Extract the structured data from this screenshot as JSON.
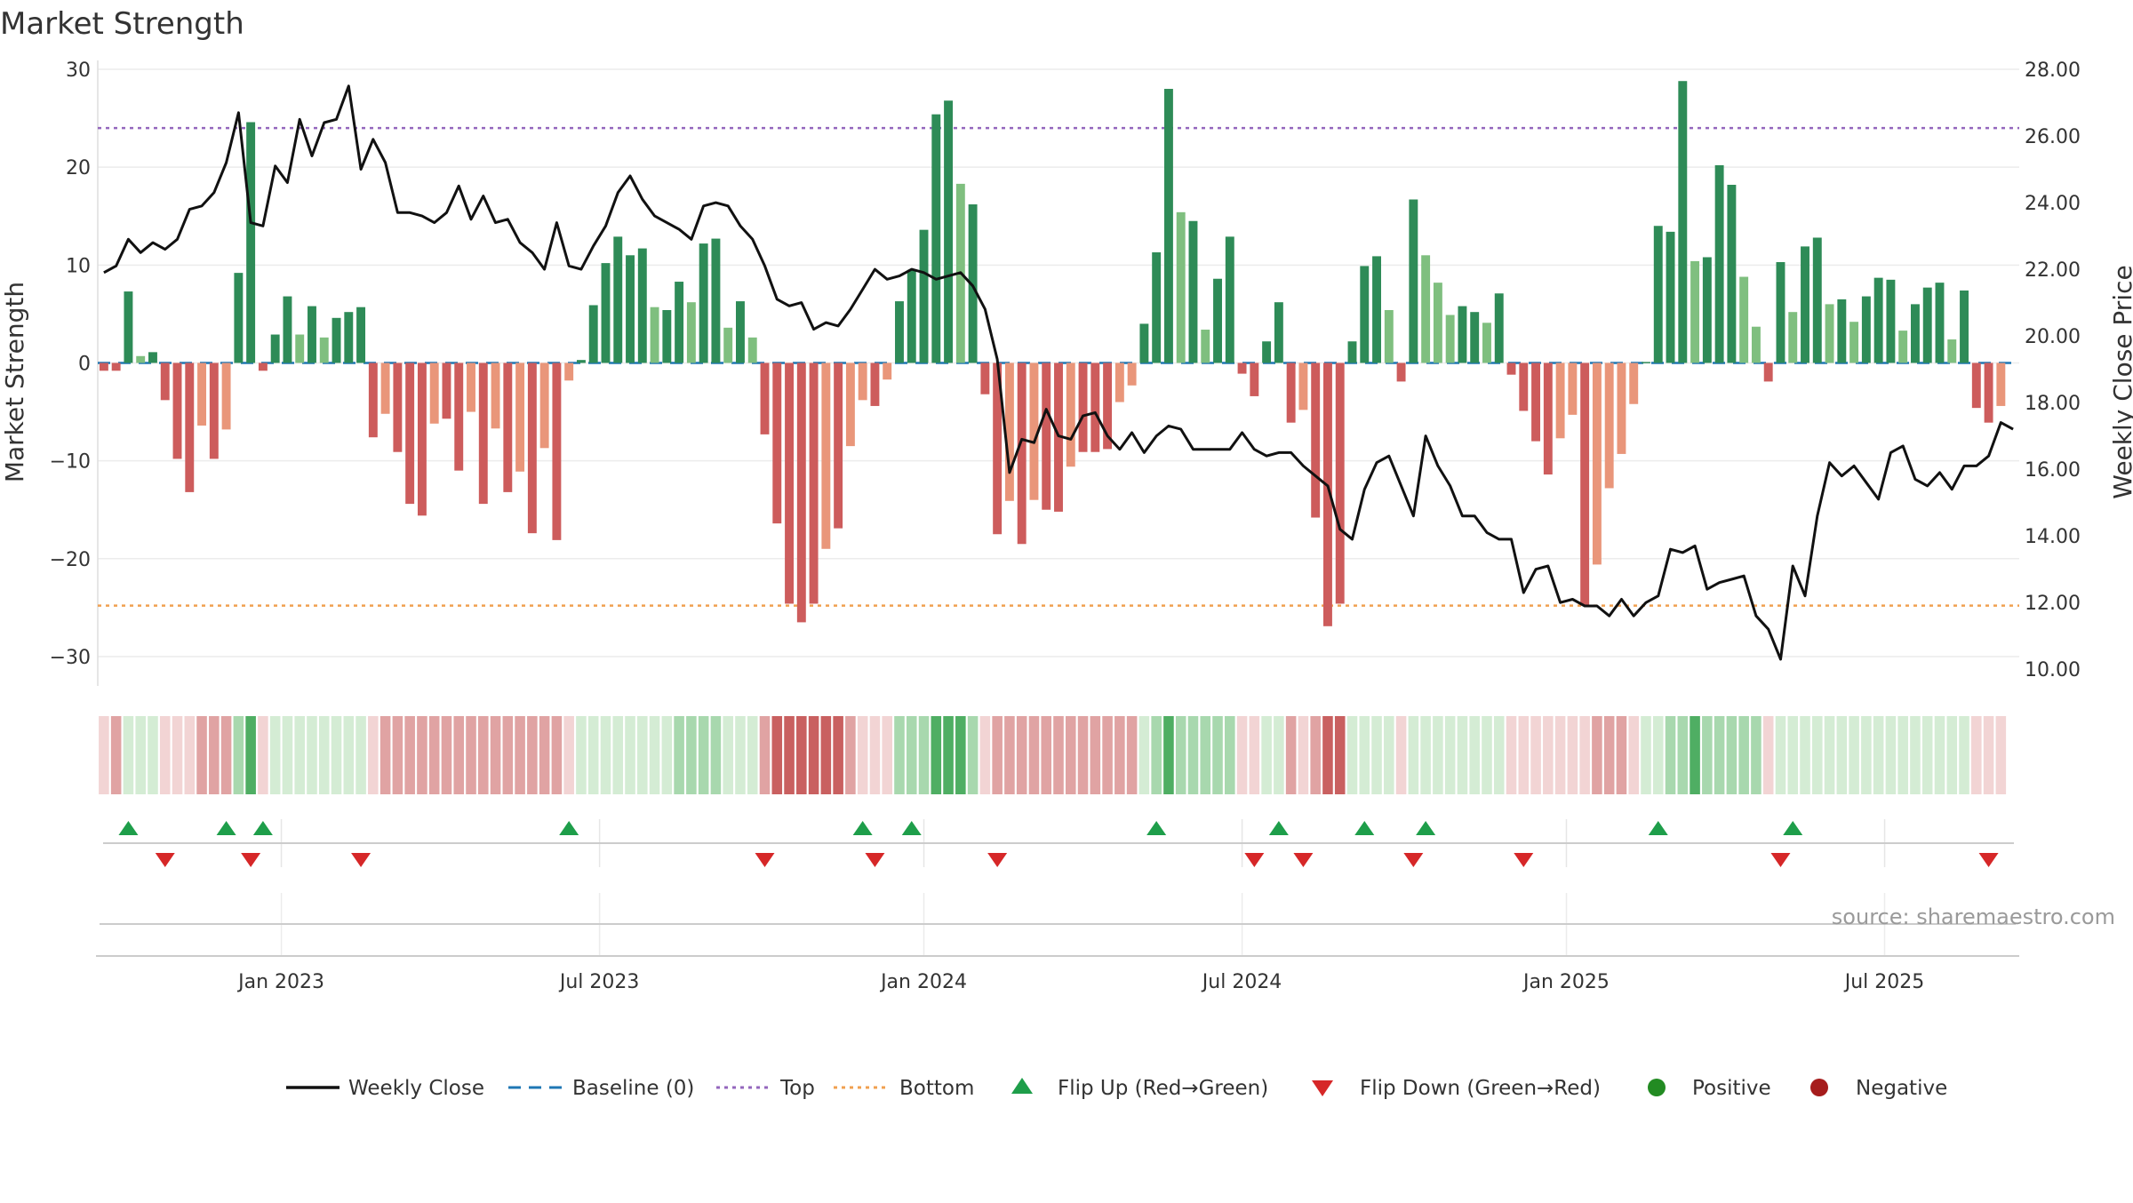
{
  "chart_data": {
    "type": "bar+line",
    "title": "Market Strength",
    "y_left_label": "Market Strength",
    "y_right_label": "Weekly Close Price",
    "y_left_range": [
      -33,
      30
    ],
    "y_left_ticks": [
      "30",
      "20",
      "10",
      "0",
      "−10",
      "−20",
      "−30"
    ],
    "y_left_tick_values": [
      30,
      20,
      10,
      0,
      -10,
      -20,
      -30
    ],
    "y_right_range": [
      9.5,
      28.0
    ],
    "y_right_ticks": [
      "28.00",
      "26.00",
      "24.00",
      "22.00",
      "20.00",
      "18.00",
      "16.00",
      "14.00",
      "12.00",
      "10.00"
    ],
    "y_right_tick_values": [
      28,
      26,
      24,
      22,
      20,
      18,
      16,
      14,
      12,
      10
    ],
    "top_level": 24,
    "bottom_level": -24.8,
    "x_ticks": [
      "Jan 2023",
      "Jul 2023",
      "Jan 2024",
      "Jul 2024",
      "Jan 2025",
      "Jul 2025"
    ],
    "x_tick_weeks": [
      14.5,
      40.5,
      67,
      93,
      119.5,
      145.5
    ],
    "strength": [
      -0.8,
      -0.8,
      7.3,
      0.7,
      1.1,
      -3.8,
      -9.8,
      -13.2,
      -6.4,
      -9.8,
      -6.8,
      9.2,
      24.6,
      -0.8,
      2.9,
      6.8,
      2.9,
      5.8,
      2.6,
      4.6,
      5.2,
      5.7,
      -7.6,
      -5.2,
      -9.1,
      -14.4,
      -15.6,
      -6.2,
      -5.7,
      -11.0,
      -5.0,
      -14.4,
      -6.7,
      -13.2,
      -11.1,
      -17.4,
      -8.7,
      -18.1,
      -1.8,
      0.3,
      5.9,
      10.2,
      12.9,
      11.0,
      11.7,
      5.7,
      5.4,
      8.3,
      6.2,
      12.2,
      12.7,
      3.6,
      6.3,
      2.6,
      -7.3,
      -16.4,
      -24.6,
      -26.5,
      -24.6,
      -19.0,
      -16.9,
      -8.5,
      -3.8,
      -4.4,
      -1.7,
      6.3,
      9.5,
      13.6,
      25.4,
      26.8,
      18.3,
      16.2,
      -3.2,
      -17.5,
      -14.1,
      -18.5,
      -14.0,
      -15.0,
      -15.2,
      -10.6,
      -9.1,
      -9.1,
      -8.8,
      -4.0,
      -2.3,
      4.0,
      11.3,
      28.0,
      15.4,
      14.5,
      3.4,
      8.6,
      12.9,
      -1.1,
      -3.4,
      2.2,
      6.2,
      -6.1,
      -4.8,
      -15.8,
      -26.9,
      -24.6,
      2.2,
      9.9,
      10.9,
      5.4,
      -1.9,
      16.7,
      11.0,
      8.2,
      4.9,
      5.8,
      5.2,
      4.1,
      7.1,
      -1.2,
      -4.9,
      -8.0,
      -11.4,
      -7.7,
      -5.3,
      -24.8,
      -20.6,
      -12.8,
      -9.3,
      -4.2,
      0.1,
      14.0,
      13.4,
      28.8,
      10.4,
      10.8,
      20.2,
      18.2,
      8.8,
      3.7,
      -1.9,
      10.3,
      5.2,
      11.9,
      12.8,
      6.0,
      6.5,
      4.2,
      6.8,
      8.7,
      8.5,
      3.3,
      6.0,
      7.7,
      8.2,
      2.4,
      7.4,
      -4.6,
      -6.1,
      -4.4
    ],
    "weekly_close": [
      21.9,
      22.1,
      22.9,
      22.5,
      22.8,
      22.6,
      22.9,
      23.8,
      23.9,
      24.3,
      25.2,
      26.7,
      23.4,
      23.3,
      25.1,
      24.6,
      26.5,
      25.4,
      26.4,
      26.5,
      27.5,
      25.0,
      25.9,
      25.2,
      23.7,
      23.7,
      23.6,
      23.4,
      23.7,
      24.5,
      23.5,
      24.2,
      23.4,
      23.5,
      22.8,
      22.5,
      22.0,
      23.4,
      22.1,
      22.0,
      22.7,
      23.3,
      24.3,
      24.8,
      24.1,
      23.6,
      23.4,
      23.2,
      22.9,
      23.9,
      24.0,
      23.9,
      23.3,
      22.9,
      22.1,
      21.1,
      20.9,
      21.0,
      20.2,
      20.4,
      20.3,
      20.8,
      21.4,
      22.0,
      21.7,
      21.8,
      22.0,
      21.9,
      21.7,
      21.8,
      21.9,
      21.5,
      20.8,
      19.3,
      15.9,
      16.9,
      16.8,
      17.8,
      17.0,
      16.9,
      17.6,
      17.7,
      17.0,
      16.6,
      17.1,
      16.5,
      17.0,
      17.3,
      17.2,
      16.6,
      16.6,
      16.6,
      16.6,
      17.1,
      16.6,
      16.4,
      16.5,
      16.5,
      16.1,
      15.8,
      15.5,
      14.2,
      13.9,
      15.4,
      16.2,
      16.4,
      15.5,
      14.6,
      17.0,
      16.1,
      15.5,
      14.6,
      14.6,
      14.1,
      13.9,
      13.9,
      12.3,
      13.0,
      13.1,
      12.0,
      12.1,
      11.9,
      11.9,
      11.6,
      12.1,
      11.6,
      12.0,
      12.2,
      13.6,
      13.5,
      13.7,
      12.4,
      12.6,
      12.7,
      12.8,
      11.6,
      11.2,
      10.3,
      13.1,
      12.2,
      14.6,
      16.2,
      15.8,
      16.1,
      15.6,
      15.1,
      16.5,
      16.7,
      15.7,
      15.5,
      15.9,
      15.4,
      16.1,
      16.1,
      16.4,
      17.4,
      17.2
    ],
    "heat_strip_shades": [
      1,
      2,
      1,
      1,
      1,
      1,
      1,
      1,
      2,
      2,
      2,
      2,
      3,
      1,
      1,
      1,
      1,
      1,
      1,
      1,
      1,
      1,
      1,
      2,
      2,
      2,
      2,
      2,
      2,
      2,
      2,
      2,
      2,
      2,
      2,
      2,
      2,
      2,
      1,
      1,
      1,
      1,
      1,
      1,
      1,
      1,
      1,
      2,
      2,
      2,
      2,
      1,
      1,
      1,
      2,
      3,
      3,
      3,
      3,
      3,
      3,
      2,
      1,
      1,
      1,
      2,
      2,
      2,
      3,
      3,
      3,
      2,
      1,
      2,
      2,
      2,
      2,
      2,
      2,
      2,
      2,
      2,
      2,
      2,
      2,
      1,
      2,
      3,
      2,
      2,
      2,
      2,
      2,
      1,
      1,
      1,
      1,
      2,
      1,
      2,
      3,
      3,
      1,
      1,
      1,
      1,
      1,
      1,
      1,
      1,
      1,
      1,
      1,
      1,
      1,
      1,
      1,
      1,
      1,
      1,
      1,
      1,
      2,
      2,
      2,
      1,
      1,
      1,
      2,
      2,
      3,
      2,
      2,
      2,
      2,
      2,
      1,
      1,
      1,
      1,
      1,
      1,
      1,
      1,
      1,
      1,
      1,
      1,
      1,
      1,
      1,
      1,
      1,
      1,
      1,
      1
    ],
    "flip_up_weeks": [
      2,
      10,
      13,
      38,
      62,
      66,
      86,
      96,
      103,
      108,
      127,
      138
    ],
    "flip_down_weeks": [
      5,
      12,
      21,
      54,
      63,
      73,
      94,
      98,
      107,
      116,
      137,
      154
    ],
    "n_weeks": 157,
    "annotation": "source: sharemaestro.com",
    "legend": [
      {
        "label": "Weekly Close",
        "symbol": "line",
        "color": "#111111"
      },
      {
        "label": "Baseline (0)",
        "symbol": "dash",
        "color": "#1f77b4"
      },
      {
        "label": "Top",
        "symbol": "dot",
        "color": "#9467bd"
      },
      {
        "label": "Bottom",
        "symbol": "dot",
        "color": "#f0a050"
      },
      {
        "label": "Flip Up (Red→Green)",
        "symbol": "triangle-up",
        "color": "#1e9e4a"
      },
      {
        "label": "Flip Down (Green→Red)",
        "symbol": "triangle-down",
        "color": "#d62728"
      },
      {
        "label": "Positive",
        "symbol": "circle",
        "color": "#228b22"
      },
      {
        "label": "Negative",
        "symbol": "circle",
        "color": "#a61c1c"
      }
    ],
    "colors": {
      "pos_strong": "#2e8b57",
      "pos_weak": "#7fbf7f",
      "neg_strong": "#cd5c5c",
      "neg_weak": "#e9967a",
      "line": "#111111",
      "baseline": "#1f77b4",
      "top": "#9467bd",
      "bottom": "#f0a050"
    }
  }
}
